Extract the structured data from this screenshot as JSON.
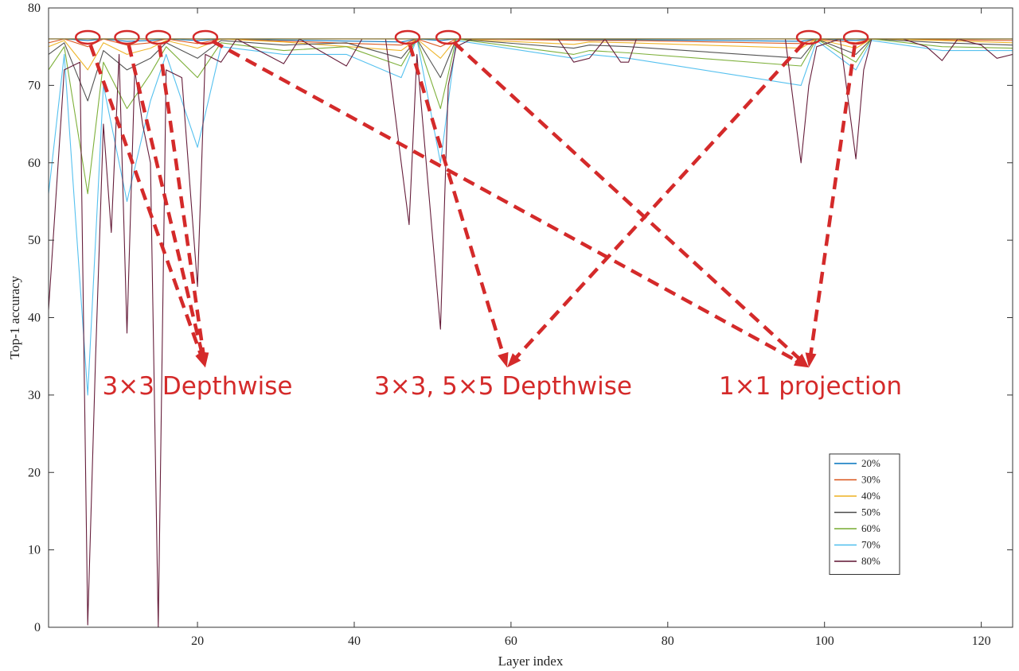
{
  "chart_data": {
    "type": "line",
    "xlabel": "Layer index",
    "ylabel": "Top-1 accuracy",
    "xlim": [
      1,
      124
    ],
    "ylim": [
      0,
      80
    ],
    "xticks": [
      20,
      40,
      60,
      80,
      100,
      120
    ],
    "yticks": [
      0,
      10,
      20,
      30,
      40,
      50,
      60,
      70,
      80
    ],
    "grid": false,
    "baseline": 76,
    "legend": {
      "placement": "bottom-right",
      "entries": [
        "20%",
        "30%",
        "40%",
        "50%",
        "60%",
        "70%",
        "80%"
      ]
    },
    "series": [
      {
        "name": "20%",
        "color": "#0072bd",
        "points": [
          [
            1,
            76
          ],
          [
            3,
            76
          ],
          [
            6,
            75.8
          ],
          [
            8,
            76
          ],
          [
            11,
            75.7
          ],
          [
            14,
            75.8
          ],
          [
            16,
            76
          ],
          [
            20,
            75.8
          ],
          [
            23,
            76
          ],
          [
            46,
            75.6
          ],
          [
            48,
            76
          ],
          [
            51,
            75.8
          ],
          [
            53,
            76
          ],
          [
            70,
            75.9
          ],
          [
            75,
            75.9
          ],
          [
            97,
            75.7
          ],
          [
            99,
            76
          ],
          [
            104,
            75.8
          ],
          [
            106,
            76
          ],
          [
            124,
            76
          ]
        ]
      },
      {
        "name": "30%",
        "color": "#d95319",
        "points": [
          [
            1,
            75.5
          ],
          [
            3,
            76
          ],
          [
            6,
            75
          ],
          [
            8,
            76
          ],
          [
            11,
            75.2
          ],
          [
            14,
            75.5
          ],
          [
            16,
            76
          ],
          [
            20,
            75.4
          ],
          [
            23,
            76
          ],
          [
            46,
            75.2
          ],
          [
            48,
            76
          ],
          [
            51,
            75
          ],
          [
            53,
            76
          ],
          [
            70,
            75.8
          ],
          [
            75,
            75.8
          ],
          [
            97,
            75.4
          ],
          [
            99,
            76
          ],
          [
            104,
            75.5
          ],
          [
            106,
            76
          ],
          [
            124,
            75.8
          ]
        ]
      },
      {
        "name": "40%",
        "color": "#edb120",
        "points": [
          [
            1,
            75
          ],
          [
            3,
            75.8
          ],
          [
            6,
            72
          ],
          [
            8,
            75.5
          ],
          [
            11,
            74
          ],
          [
            14,
            74.8
          ],
          [
            16,
            75.8
          ],
          [
            20,
            74.8
          ],
          [
            23,
            76
          ],
          [
            31,
            75.6
          ],
          [
            46,
            74.5
          ],
          [
            48,
            76
          ],
          [
            51,
            73.5
          ],
          [
            53,
            76
          ],
          [
            68,
            75.3
          ],
          [
            70,
            75.6
          ],
          [
            75,
            75.5
          ],
          [
            97,
            74.8
          ],
          [
            99,
            76
          ],
          [
            104,
            74.8
          ],
          [
            106,
            76
          ],
          [
            115,
            75.8
          ],
          [
            124,
            75.5
          ]
        ]
      },
      {
        "name": "50%",
        "color": "#4a4a4a",
        "points": [
          [
            1,
            74
          ],
          [
            3,
            75.5
          ],
          [
            6,
            68
          ],
          [
            8,
            74.5
          ],
          [
            11,
            72
          ],
          [
            14,
            73.5
          ],
          [
            16,
            75.5
          ],
          [
            20,
            73.5
          ],
          [
            23,
            75.8
          ],
          [
            31,
            75.2
          ],
          [
            39,
            75.5
          ],
          [
            46,
            73.5
          ],
          [
            48,
            76
          ],
          [
            51,
            71
          ],
          [
            53,
            76
          ],
          [
            68,
            74.8
          ],
          [
            70,
            75.2
          ],
          [
            75,
            75
          ],
          [
            97,
            73.5
          ],
          [
            99,
            76
          ],
          [
            104,
            74
          ],
          [
            106,
            76
          ],
          [
            115,
            75.5
          ],
          [
            124,
            75.2
          ]
        ]
      },
      {
        "name": "60%",
        "color": "#77ac30",
        "points": [
          [
            1,
            72
          ],
          [
            3,
            75
          ],
          [
            6,
            56
          ],
          [
            8,
            73
          ],
          [
            11,
            67
          ],
          [
            14,
            71.5
          ],
          [
            16,
            75
          ],
          [
            20,
            71
          ],
          [
            23,
            75.5
          ],
          [
            31,
            74.5
          ],
          [
            39,
            75
          ],
          [
            46,
            72.5
          ],
          [
            48,
            76
          ],
          [
            51,
            67
          ],
          [
            53,
            76
          ],
          [
            68,
            74
          ],
          [
            70,
            74.5
          ],
          [
            75,
            74.2
          ],
          [
            97,
            72.5
          ],
          [
            99,
            76
          ],
          [
            104,
            73
          ],
          [
            106,
            76
          ],
          [
            115,
            75
          ],
          [
            124,
            74.8
          ]
        ]
      },
      {
        "name": "70%",
        "color": "#4dbeee",
        "points": [
          [
            1,
            56
          ],
          [
            3,
            74
          ],
          [
            6,
            30
          ],
          [
            8,
            70
          ],
          [
            11,
            55
          ],
          [
            14,
            68
          ],
          [
            16,
            74
          ],
          [
            20,
            62
          ],
          [
            23,
            75
          ],
          [
            31,
            74
          ],
          [
            39,
            74
          ],
          [
            46,
            71
          ],
          [
            48,
            76
          ],
          [
            51,
            60
          ],
          [
            53,
            75.8
          ],
          [
            68,
            73.5
          ],
          [
            70,
            74
          ],
          [
            75,
            73.5
          ],
          [
            97,
            70
          ],
          [
            99,
            75.8
          ],
          [
            104,
            72
          ],
          [
            106,
            75.8
          ],
          [
            115,
            74.5
          ],
          [
            124,
            74.5
          ]
        ]
      },
      {
        "name": "80%",
        "color": "#5e1230",
        "points": [
          [
            1,
            41
          ],
          [
            3,
            72
          ],
          [
            5,
            73
          ],
          [
            6,
            0.3
          ],
          [
            7,
            35
          ],
          [
            8,
            65
          ],
          [
            9,
            51
          ],
          [
            10,
            74
          ],
          [
            11,
            38
          ],
          [
            12,
            72
          ],
          [
            13,
            65
          ],
          [
            14,
            60
          ],
          [
            15,
            0
          ],
          [
            16,
            72
          ],
          [
            18,
            71
          ],
          [
            20,
            44
          ],
          [
            21,
            74
          ],
          [
            23,
            73
          ],
          [
            25,
            76
          ],
          [
            31,
            72.8
          ],
          [
            33,
            76
          ],
          [
            39,
            72.5
          ],
          [
            41,
            76
          ],
          [
            44,
            76
          ],
          [
            46,
            60
          ],
          [
            47,
            52
          ],
          [
            48,
            74
          ],
          [
            51,
            38.5
          ],
          [
            52,
            70
          ],
          [
            53,
            75
          ],
          [
            55,
            76
          ],
          [
            66,
            76
          ],
          [
            68,
            73
          ],
          [
            70,
            73.5
          ],
          [
            72,
            76
          ],
          [
            74,
            73
          ],
          [
            75,
            73
          ],
          [
            76,
            76
          ],
          [
            95,
            76
          ],
          [
            97,
            60
          ],
          [
            98,
            70
          ],
          [
            99,
            75
          ],
          [
            102,
            76
          ],
          [
            104,
            60.5
          ],
          [
            105,
            72
          ],
          [
            106,
            76
          ],
          [
            110,
            76
          ],
          [
            113,
            75
          ],
          [
            115,
            73.2
          ],
          [
            117,
            76
          ],
          [
            120,
            75.2
          ],
          [
            122,
            73.5
          ],
          [
            124,
            74
          ]
        ]
      }
    ],
    "annotations": [
      {
        "text": "3×3 Depthwise",
        "target_x": 21,
        "target_y": 35
      },
      {
        "text": "3×3, 5×5 Depthwise",
        "target_x": 59.5,
        "target_y": 35
      },
      {
        "text": "1×1 projection",
        "target_x": 98,
        "target_y": 35
      }
    ],
    "highlights": [
      {
        "x": 6,
        "y": 76,
        "points_to": 0
      },
      {
        "x": 11,
        "y": 76,
        "points_to": 0
      },
      {
        "x": 15,
        "y": 76,
        "points_to": 0
      },
      {
        "x": 21,
        "y": 76,
        "points_to": 2
      },
      {
        "x": 46.8,
        "y": 76,
        "points_to": 1
      },
      {
        "x": 52,
        "y": 76,
        "points_to": 2
      },
      {
        "x": 98,
        "y": 76,
        "points_to": 1
      },
      {
        "x": 104,
        "y": 76,
        "points_to": 2
      }
    ],
    "annotation_color": "#d42a2a"
  }
}
